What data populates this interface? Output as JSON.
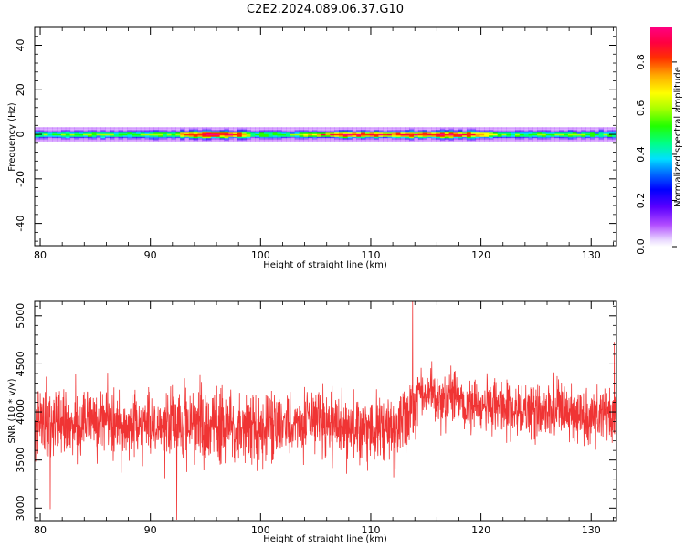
{
  "title": "C2E2.2024.089.06.37.G10",
  "chart_data": [
    {
      "type": "heatmap",
      "xlabel": "Height of straight line (km)",
      "ylabel": "Frequency (Hz)",
      "xlim": [
        79.5,
        132.3
      ],
      "ylim": [
        -50,
        48
      ],
      "xticks": [
        80,
        90,
        100,
        110,
        120,
        130
      ],
      "yticks": [
        -40,
        -20,
        0,
        20,
        40
      ],
      "colorbar": {
        "label": "Normalized spectral amplitude",
        "range": [
          0,
          0.95
        ],
        "ticks": [
          "0.0",
          "0.2",
          "0.4",
          "0.6",
          "0.8"
        ],
        "tick_values": [
          0.0,
          0.2,
          0.4,
          0.6,
          0.8
        ],
        "colormap": "hsv-rainbow (violet-blue-cyan-green-yellow-red-magenta)"
      },
      "band": {
        "center_frequency_hz": 0,
        "halo_halfwidth_hz": 3,
        "core_halfwidth_hz": 1.2,
        "peak_segments": [
          {
            "x_range": [
              92,
              99
            ],
            "peak_amplitude": 0.85
          },
          {
            "x_range": [
              103,
              122
            ],
            "peak_amplitude": 0.8
          }
        ]
      }
    },
    {
      "type": "line",
      "xlabel": "Height of straight line (km)",
      "ylabel": "SNR (10 * v/v)",
      "xlim": [
        79.5,
        132.3
      ],
      "ylim": [
        2870,
        5150
      ],
      "xticks": [
        80,
        90,
        100,
        110,
        120,
        130
      ],
      "yticks": [
        3000,
        3500,
        4000,
        4500,
        5000
      ],
      "color": "#f03434",
      "profile": [
        {
          "x": 79.5,
          "mean": 3900,
          "spread": 320
        },
        {
          "x": 90,
          "mean": 3850,
          "spread": 330
        },
        {
          "x": 99,
          "mean": 3820,
          "spread": 320
        },
        {
          "x": 105,
          "mean": 3880,
          "spread": 300
        },
        {
          "x": 112,
          "mean": 3780,
          "spread": 330
        },
        {
          "x": 113.5,
          "mean": 3950,
          "spread": 350
        },
        {
          "x": 114.5,
          "mean": 4220,
          "spread": 250
        },
        {
          "x": 120,
          "mean": 4050,
          "spread": 250
        },
        {
          "x": 132.3,
          "mean": 3950,
          "spread": 280
        }
      ],
      "extremes": [
        {
          "x": 113.8,
          "y": 5150
        },
        {
          "x": 92.4,
          "y": 2880
        },
        {
          "x": 80.9,
          "y": 2990
        },
        {
          "x": 132.1,
          "y": 4720
        }
      ]
    }
  ]
}
